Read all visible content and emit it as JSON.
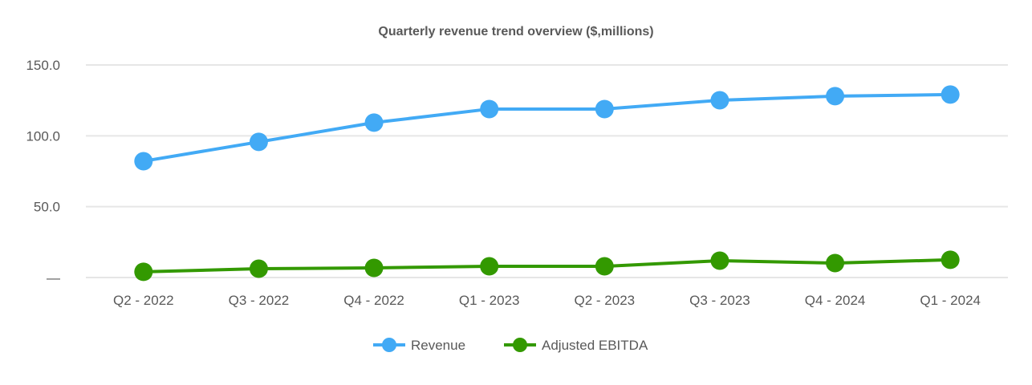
{
  "chart_data": {
    "type": "line",
    "title": "Quarterly revenue trend overview ($,millions)",
    "xlabel": "",
    "ylabel": "",
    "categories": [
      "Q2 - 2022",
      "Q3 - 2022",
      "Q4 - 2022",
      "Q1 - 2023",
      "Q2 - 2023",
      "Q3 - 2023",
      "Q4 - 2024",
      "Q1 - 2024"
    ],
    "ylim": [
      0,
      150
    ],
    "yticks": [
      0,
      50,
      100,
      150
    ],
    "ytick_labels": [
      "—",
      "50.0",
      "100.0",
      "150.0"
    ],
    "grid": true,
    "legend_placement": "bottom",
    "series": [
      {
        "name": "Revenue",
        "color": "#42aaf5",
        "values": [
          82.1,
          95.7,
          109.3,
          118.9,
          118.9,
          125.1,
          128.0,
          129.1
        ]
      },
      {
        "name": "Adjusted EBITDA",
        "color": "#339900",
        "values": [
          4.0,
          6.2,
          6.8,
          7.9,
          7.9,
          11.9,
          10.2,
          12.5
        ]
      }
    ]
  }
}
